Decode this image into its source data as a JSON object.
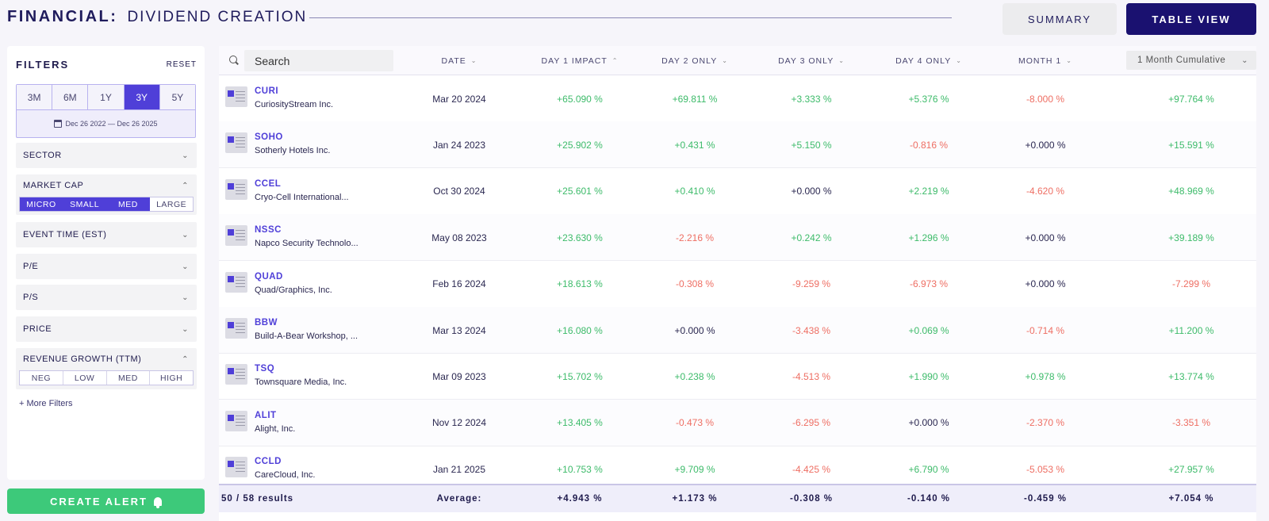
{
  "header": {
    "title_main": "FINANCIAL:",
    "title_sub": "DIVIDEND CREATION",
    "summary_label": "SUMMARY",
    "table_view_label": "TABLE VIEW"
  },
  "filters": {
    "title": "FILTERS",
    "reset_label": "RESET",
    "periods": [
      "3M",
      "6M",
      "1Y",
      "3Y",
      "5Y"
    ],
    "active_period": "3Y",
    "date_range": "Dec 26 2022 — Dec 26 2025",
    "sector_label": "SECTOR",
    "market_cap_label": "MARKET CAP",
    "market_cap_options": [
      "MICRO",
      "SMALL",
      "MED",
      "LARGE"
    ],
    "event_time_label": "EVENT TIME (EST)",
    "pe_label": "P/E",
    "ps_label": "P/S",
    "price_label": "PRICE",
    "revenue_growth_label": "REVENUE GROWTH (TTM)",
    "revenue_growth_options": [
      "NEG",
      "LOW",
      "MED",
      "HIGH"
    ],
    "more_filters_label": "+ More Filters"
  },
  "create_alert_label": "CREATE ALERT",
  "table": {
    "search_placeholder": "Search",
    "columns": {
      "date": "DATE",
      "day1": "DAY 1 IMPACT",
      "day2": "DAY 2 ONLY",
      "day3": "DAY 3 ONLY",
      "day4": "DAY 4 ONLY",
      "month1": "MONTH 1",
      "cumulative": "1 Month Cumulative"
    },
    "rows": [
      {
        "ticker": "CURI",
        "name": "CuriosityStream Inc.",
        "date": "Mar 20 2024",
        "day1": "+65.090 %",
        "day2": "+69.811 %",
        "day3": "+3.333 %",
        "day4": "+5.376 %",
        "month1": "-8.000 %",
        "cum": "+97.764 %"
      },
      {
        "ticker": "SOHO",
        "name": "Sotherly Hotels Inc.",
        "date": "Jan 24 2023",
        "day1": "+25.902 %",
        "day2": "+0.431 %",
        "day3": "+5.150 %",
        "day4": "-0.816 %",
        "month1": "+0.000 %",
        "cum": "+15.591 %"
      },
      {
        "ticker": "CCEL",
        "name": "Cryo-Cell International...",
        "date": "Oct 30 2024",
        "day1": "+25.601 %",
        "day2": "+0.410 %",
        "day3": "+0.000 %",
        "day4": "+2.219 %",
        "month1": "-4.620 %",
        "cum": "+48.969 %"
      },
      {
        "ticker": "NSSC",
        "name": "Napco Security Technolo...",
        "date": "May 08 2023",
        "day1": "+23.630 %",
        "day2": "-2.216 %",
        "day3": "+0.242 %",
        "day4": "+1.296 %",
        "month1": "+0.000 %",
        "cum": "+39.189 %"
      },
      {
        "ticker": "QUAD",
        "name": "Quad/Graphics, Inc.",
        "date": "Feb 16 2024",
        "day1": "+18.613 %",
        "day2": "-0.308 %",
        "day3": "-9.259 %",
        "day4": "-6.973 %",
        "month1": "+0.000 %",
        "cum": "-7.299 %"
      },
      {
        "ticker": "BBW",
        "name": "Build-A-Bear Workshop, ...",
        "date": "Mar 13 2024",
        "day1": "+16.080 %",
        "day2": "+0.000 %",
        "day3": "-3.438 %",
        "day4": "+0.069 %",
        "month1": "-0.714 %",
        "cum": "+11.200 %"
      },
      {
        "ticker": "TSQ",
        "name": "Townsquare Media, Inc.",
        "date": "Mar 09 2023",
        "day1": "+15.702 %",
        "day2": "+0.238 %",
        "day3": "-4.513 %",
        "day4": "+1.990 %",
        "month1": "+0.978 %",
        "cum": "+13.774 %"
      },
      {
        "ticker": "ALIT",
        "name": "Alight, Inc.",
        "date": "Nov 12 2024",
        "day1": "+13.405 %",
        "day2": "-0.473 %",
        "day3": "-6.295 %",
        "day4": "+0.000 %",
        "month1": "-2.370 %",
        "cum": "-3.351 %"
      },
      {
        "ticker": "CCLD",
        "name": "CareCloud, Inc.",
        "date": "Jan 21 2025",
        "day1": "+10.753 %",
        "day2": "+9.709 %",
        "day3": "-4.425 %",
        "day4": "+6.790 %",
        "month1": "-5.053 %",
        "cum": "+27.957 %"
      }
    ],
    "footer": {
      "results": "50 / 58 results",
      "average_label": "Average:",
      "day1": "+4.943 %",
      "day2": "+1.173 %",
      "day3": "-0.308 %",
      "day4": "-0.140 %",
      "month1": "-0.459 %",
      "cum": "+7.054 %"
    }
  },
  "colors": {
    "accent": "#4f3fd8",
    "brand_dark": "#1a1170",
    "positive": "#3dbb6a",
    "negative": "#ee6e63",
    "alert_green": "#3dc97a"
  }
}
